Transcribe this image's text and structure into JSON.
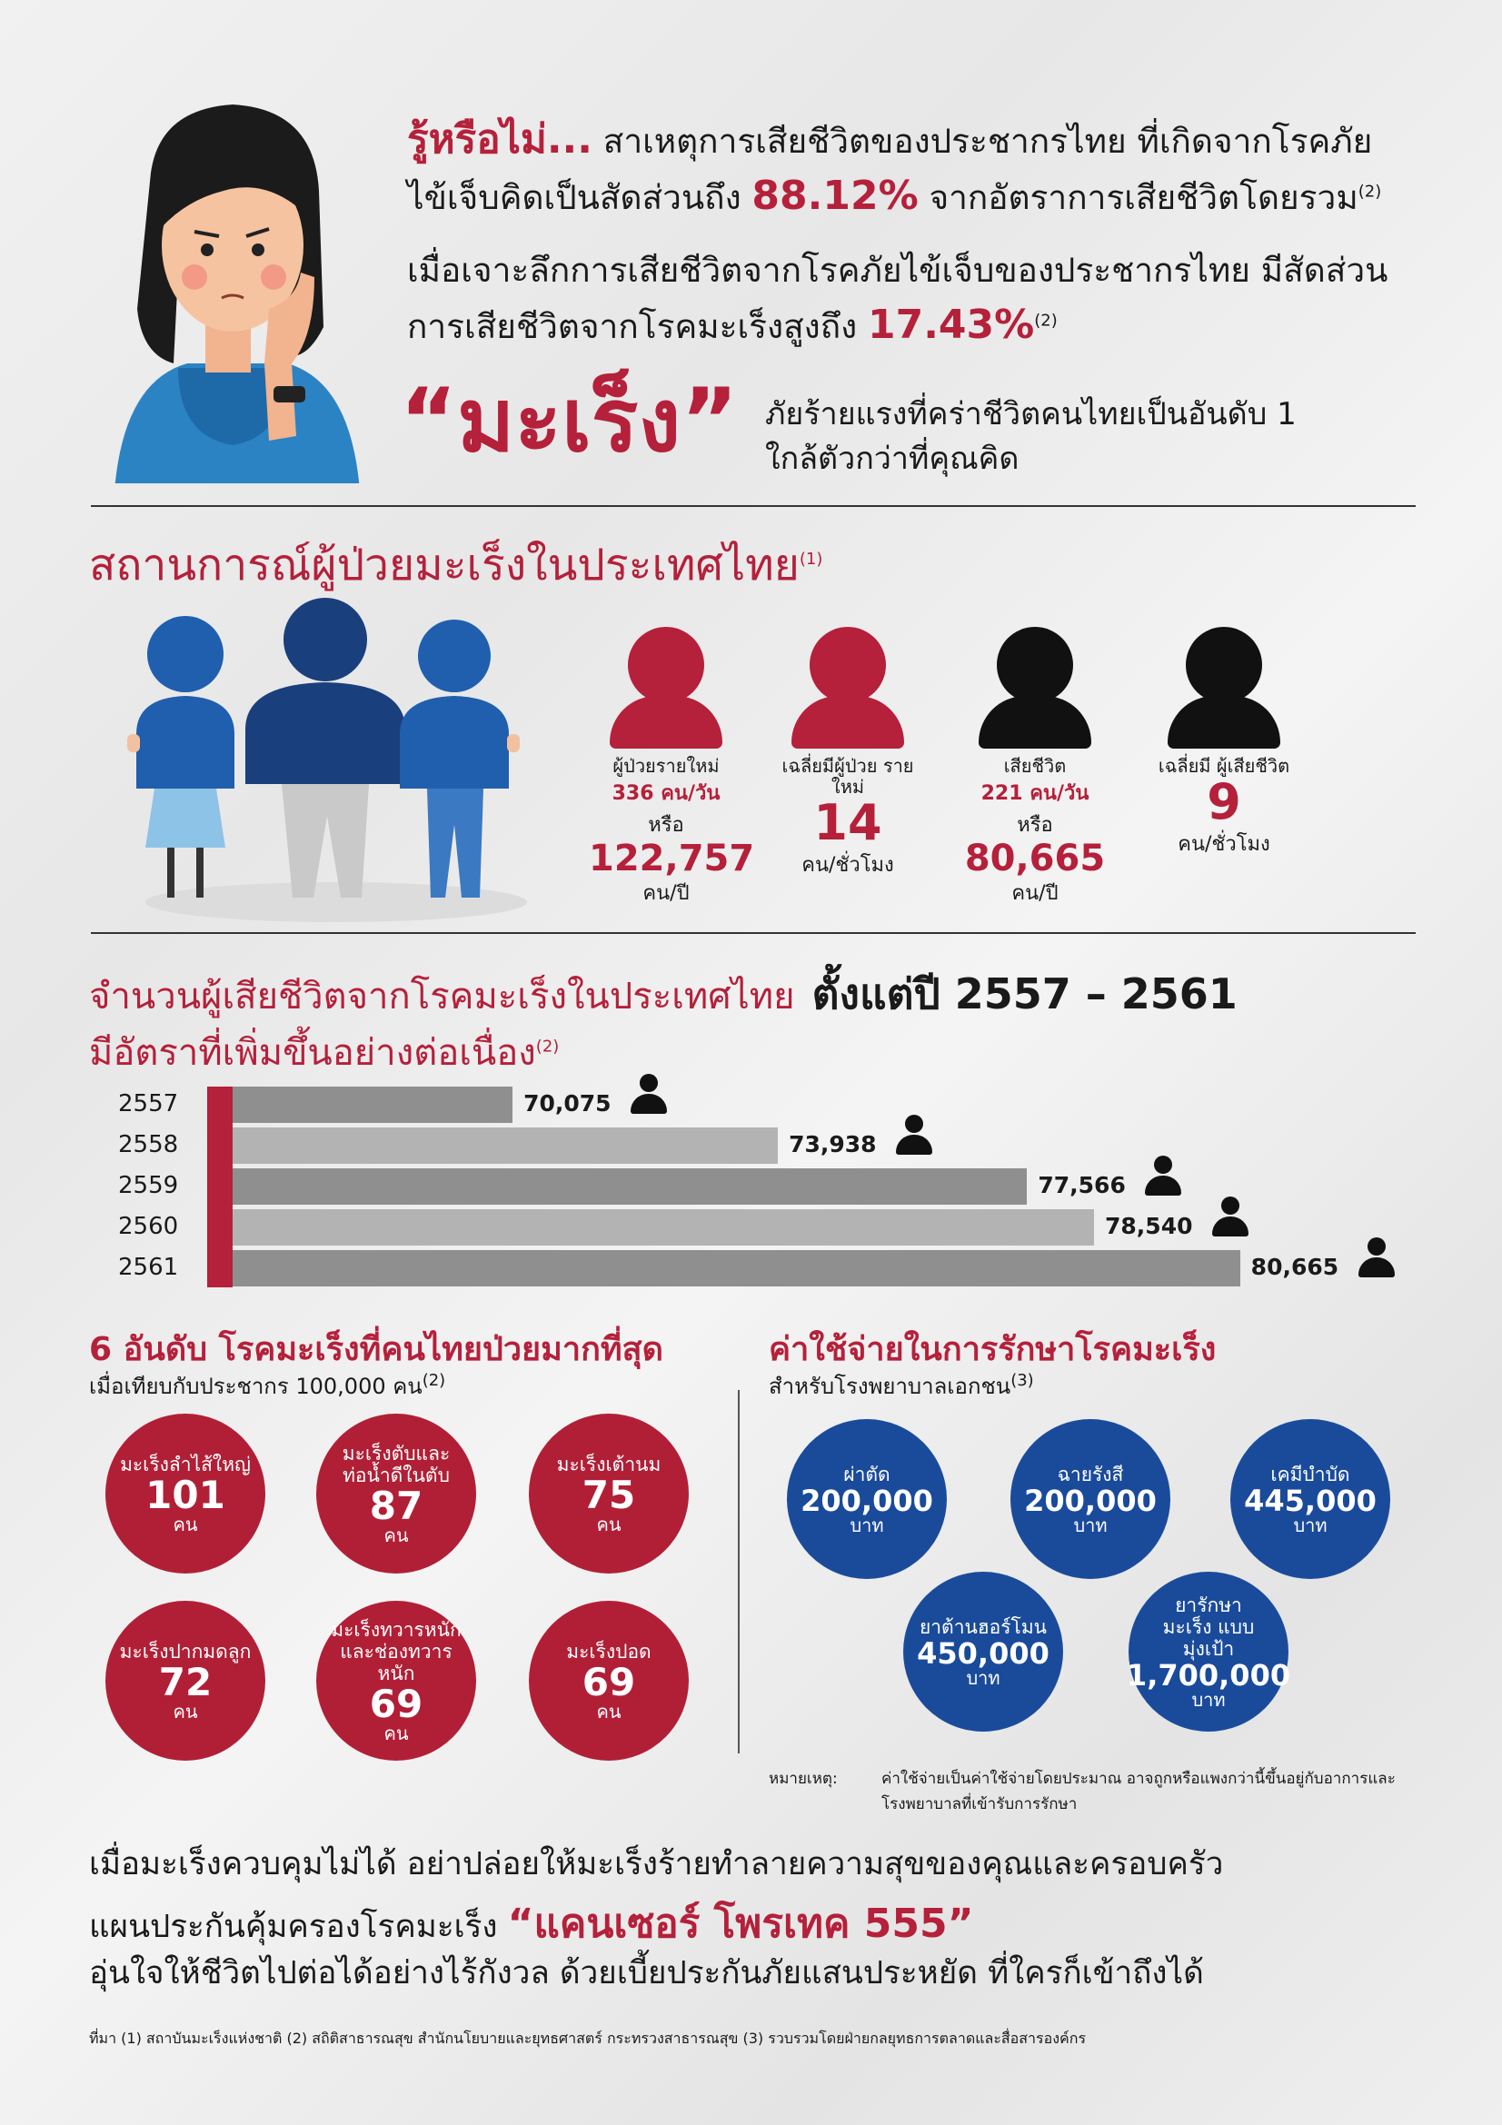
{
  "intro": {
    "lead": "รู้หรือไม่...",
    "line1_rest": "สาเหตุการเสียชีวิตของประชากรไทย ที่เกิดจากโรคภัย",
    "line2_pre": "ไข้เจ็บคิดเป็นสัดส่วนถึง",
    "line2_pct": "88.12%",
    "line2_post": "จากอัตราการเสียชีวิตโดยรวม",
    "line2_ref": "(2)",
    "line3": "เมื่อเจาะลึกการเสียชีวิตจากโรคภัยไข้เจ็บของประชากรไทย มีสัดส่วน",
    "line4_pre": "การเสียชีวิตจากโรคมะเร็งสูงถึง",
    "line4_pct": "17.43%",
    "line4_ref": "(2)",
    "cancer_word": "“มะเร็ง”",
    "cancer_desc1": "ภัยร้ายแรงที่คร่าชีวิตคนไทยเป็นอันดับ 1",
    "cancer_desc2": "ใกล้ตัวกว่าที่คุณคิด"
  },
  "situation": {
    "title": "สถานการณ์ผู้ป่วยมะเร็งในประเทศไทย",
    "ref": "(1)",
    "stats": [
      {
        "label": "ผู้ป่วยรายใหม่",
        "value1": "336 คน/วัน",
        "mid": "หรือ",
        "big": "122,757",
        "unit": "คน/ปี",
        "color": "#b5203a"
      },
      {
        "label": "เฉลี่ยมีผู้ป่วย รายใหม่",
        "value1": "",
        "mid": "",
        "big": "14",
        "unit": "คน/ชั่วโมง",
        "color": "#b5203a"
      },
      {
        "label": "เสียชีวิต",
        "value1": "221 คน/วัน",
        "mid": "หรือ",
        "big": "80,665",
        "unit": "คน/ปี",
        "color": "#111111"
      },
      {
        "label": "เฉลี่ยมี ผู้เสียชีวิต",
        "value1": "",
        "mid": "",
        "big": "9",
        "unit": "คน/ชั่วโมง",
        "color": "#111111"
      }
    ]
  },
  "deaths": {
    "title_pre": "จำนวนผู้เสียชีวิตจากโรคมะเร็งในประเทศไทย",
    "title_bold": "ตั้งแต่ปี 2557 – 2561",
    "subtitle": "มีอัตราที่เพิ่มขึ้นอย่างต่อเนื่อง",
    "ref": "(2)"
  },
  "chart_data": {
    "type": "bar",
    "orientation": "horizontal",
    "categories": [
      "2557",
      "2558",
      "2559",
      "2560",
      "2561"
    ],
    "values": [
      70075,
      73938,
      77566,
      78540,
      80665
    ],
    "labels": [
      "70,075",
      "73,938",
      "77,566",
      "78,540",
      "80,665"
    ],
    "xlim": [
      66000,
      81000
    ],
    "bar_colors": [
      "#8f8f8f",
      "#b3b3b3"
    ],
    "accent": "#b5203a"
  },
  "top6": {
    "title": "6 อันดับ โรคมะเร็งที่คนไทยป่วยมากที่สุด",
    "subtitle": "เมื่อเทียบกับประชากร 100,000 คน",
    "ref": "(2)",
    "items": [
      {
        "name": "มะเร็งลำไส้ใหญ่",
        "num": "101",
        "unit": "คน"
      },
      {
        "name": "มะเร็งตับและ ท่อน้ำดีในตับ",
        "num": "87",
        "unit": "คน"
      },
      {
        "name": "มะเร็งเต้านม",
        "num": "75",
        "unit": "คน"
      },
      {
        "name": "มะเร็งปากมดลูก",
        "num": "72",
        "unit": "คน"
      },
      {
        "name": "มะเร็งทวารหนัก และช่องทวารหนัก",
        "num": "69",
        "unit": "คน"
      },
      {
        "name": "มะเร็งปอด",
        "num": "69",
        "unit": "คน"
      }
    ]
  },
  "cost": {
    "title": "ค่าใช้จ่ายในการรักษาโรคมะเร็ง",
    "subtitle": "สำหรับโรงพยาบาลเอกชน",
    "ref": "(3)",
    "items": [
      {
        "name": "ผ่าตัด",
        "num": "200,000",
        "unit": "บาท"
      },
      {
        "name": "ฉายรังสี",
        "num": "200,000",
        "unit": "บาท"
      },
      {
        "name": "เคมีบำบัด",
        "num": "445,000",
        "unit": "บาท"
      },
      {
        "name": "ยาต้านฮอร์โมน",
        "num": "450,000",
        "unit": "บาท"
      },
      {
        "name": "ยารักษามะเร็ง แบบมุ่งเป้า",
        "num": "1,700,000",
        "unit": "บาท"
      }
    ],
    "note_label": "หมายเหตุ:",
    "note_text1": "ค่าใช้จ่ายเป็นค่าใช้จ่ายโดยประมาณ อาจถูกหรือแพงกว่านี้ขึ้นอยู่กับอาการและ",
    "note_text2": "โรงพยาบาลที่เข้ารับการรักษา"
  },
  "closing": {
    "line1": "เมื่อมะเร็งควบคุมไม่ได้ อย่าปล่อยให้มะเร็งร้ายทำลายความสุขของคุณและครอบครัว",
    "line2_pre": "แผนประกันคุ้มครองโรคมะเร็ง",
    "line2_product": "“แคนเซอร์ โพรเทค 555”",
    "line3": "อุ่นใจให้ชีวิตไปต่อได้อย่างไร้กังวล ด้วยเบี้ยประกันภัยแสนประหยัด ที่ใครก็เข้าถึงได้"
  },
  "source": "ที่มา (1) สถาบันมะเร็งแห่งชาติ (2) สถิติสาธารณสุข สำนักนโยบายและยุทธศาสตร์ กระทรวงสาธารณสุข (3) รวบรวมโดยฝ่ายกลยุทธการตลาดและสื่อสารองค์กร"
}
